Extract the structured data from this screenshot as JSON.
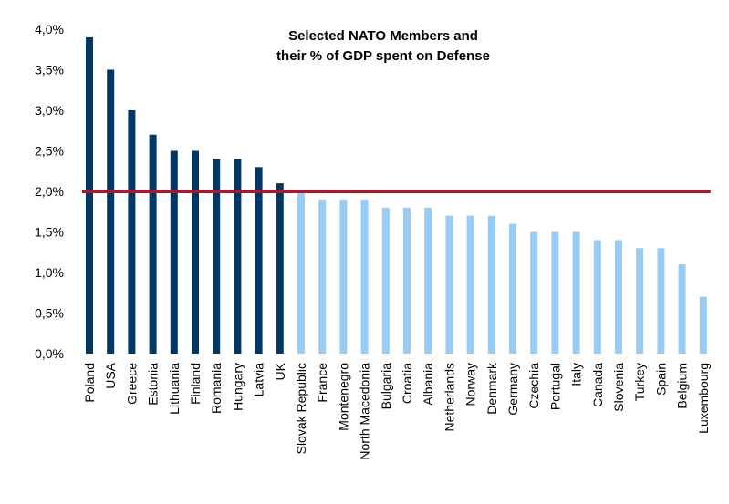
{
  "chart_data": {
    "type": "bar",
    "title_lines": [
      "Selected NATO Members and",
      "their % of GDP spent on Defense"
    ],
    "xlabel": "",
    "ylabel": "",
    "ylim": [
      0,
      4.0
    ],
    "yticks": [
      "0,0%",
      "0,5%",
      "1,0%",
      "1,5%",
      "2,0%",
      "2,5%",
      "3,0%",
      "3,5%",
      "4,0%"
    ],
    "grid": false,
    "categories": [
      "Poland",
      "USA",
      "Greece",
      "Estonia",
      "Lithuania",
      "Finland",
      "Romania",
      "Hungary",
      "Latvia",
      "UK",
      "Slovak Republic",
      "France",
      "Montenegro",
      "North Macedonia",
      "Bulgaria",
      "Croatia",
      "Albania",
      "Netherlands",
      "Norway",
      "Denmark",
      "Germany",
      "Czechia",
      "Portugal",
      "Italy",
      "Canada",
      "Slovenia",
      "Turkey",
      "Spain",
      "Belgium",
      "Luxembourg"
    ],
    "values": [
      3.9,
      3.5,
      3.0,
      2.7,
      2.5,
      2.5,
      2.4,
      2.4,
      2.3,
      2.1,
      2.0,
      1.9,
      1.9,
      1.9,
      1.8,
      1.8,
      1.8,
      1.7,
      1.7,
      1.7,
      1.6,
      1.5,
      1.5,
      1.5,
      1.4,
      1.4,
      1.3,
      1.3,
      1.1,
      0.7
    ],
    "reference_line": 2.0,
    "colors": {
      "above_target": "#003764",
      "below_target": "#99ccf5",
      "target_line": "#a6192e",
      "text": "#000000"
    }
  }
}
